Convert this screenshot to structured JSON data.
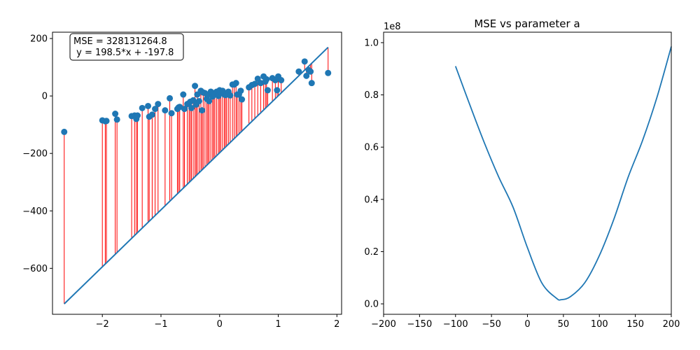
{
  "chart_data": [
    {
      "type": "scatter",
      "title": "",
      "xlabel": "",
      "ylabel": "",
      "xlim": [
        -2.85,
        2.08
      ],
      "ylim": [
        -760,
        222
      ],
      "xticks": [
        -2,
        -1,
        0,
        1,
        2
      ],
      "yticks": [
        200,
        0,
        -200,
        -400,
        -600
      ],
      "annotation_lines": [
        "MSE = 328131264.8",
        " y = 198.5*x + -197.8"
      ],
      "fit_line": {
        "slope": 198.5,
        "intercept": -197.8,
        "x_range": [
          -2.65,
          1.85
        ]
      },
      "colors": {
        "points": "#1f77b4",
        "line": "#1f77b4",
        "residuals": "#ff0000"
      },
      "points": {
        "x": [
          -2.65,
          -2.0,
          -1.95,
          -1.93,
          -1.78,
          -1.75,
          -1.5,
          -1.45,
          -1.42,
          -1.4,
          -1.32,
          -1.22,
          -1.2,
          -1.15,
          -1.1,
          -1.05,
          -0.93,
          -0.85,
          -0.82,
          -0.72,
          -0.7,
          -0.68,
          -0.62,
          -0.6,
          -0.55,
          -0.52,
          -0.5,
          -0.48,
          -0.45,
          -0.42,
          -0.4,
          -0.38,
          -0.35,
          -0.32,
          -0.3,
          -0.28,
          -0.25,
          -0.22,
          -0.2,
          -0.18,
          -0.15,
          -0.12,
          -0.1,
          -0.08,
          -0.05,
          -0.02,
          0.0,
          0.02,
          0.05,
          0.08,
          0.1,
          0.12,
          0.15,
          0.18,
          0.22,
          0.25,
          0.28,
          0.3,
          0.33,
          0.36,
          0.38,
          0.5,
          0.55,
          0.6,
          0.65,
          0.7,
          0.75,
          0.78,
          0.8,
          0.82,
          0.9,
          0.95,
          0.98,
          1.0,
          1.05,
          1.35,
          1.45,
          1.48,
          1.52,
          1.55,
          1.57,
          1.85
        ],
        "y": [
          -125,
          -85,
          -88,
          -87,
          -62,
          -82,
          -70,
          -68,
          -80,
          -68,
          -42,
          -35,
          -72,
          -65,
          -45,
          -28,
          -50,
          -8,
          -60,
          -45,
          -40,
          -38,
          5,
          -45,
          -28,
          -25,
          -20,
          -42,
          -15,
          35,
          -30,
          5,
          -18,
          18,
          -50,
          12,
          10,
          -10,
          5,
          -18,
          15,
          -2,
          10,
          5,
          15,
          0,
          20,
          12,
          18,
          5,
          3,
          5,
          15,
          2,
          40,
          40,
          45,
          5,
          5,
          18,
          -12,
          30,
          38,
          42,
          60,
          45,
          68,
          50,
          58,
          20,
          62,
          55,
          20,
          68,
          55,
          85,
          120,
          70,
          90,
          85,
          45,
          80
        ]
      }
    },
    {
      "type": "line",
      "title": "MSE vs parameter a",
      "xlabel": "",
      "ylabel": "",
      "y_offset_label": "1e8",
      "xlim": [
        -200,
        200
      ],
      "ylim": [
        -0.04,
        1.04
      ],
      "xticks": [
        -200,
        -150,
        -100,
        -50,
        0,
        50,
        100,
        150,
        200
      ],
      "yticks": [
        0.0,
        0.2,
        0.4,
        0.6,
        0.8,
        1.0
      ],
      "yticklabels": [
        "0.0",
        "0.2",
        "0.4",
        "0.6",
        "0.8",
        "1.0"
      ],
      "colors": {
        "line": "#1f77b4"
      },
      "series": [
        {
          "x": [
            -100,
            -80,
            -60,
            -40,
            -20,
            0,
            20,
            40,
            47,
            60,
            80,
            100,
            120,
            140,
            160,
            180,
            200
          ],
          "y": [
            0.91,
            0.761,
            0.617,
            0.486,
            0.37,
            0.215,
            0.08,
            0.022,
            0.016,
            0.028,
            0.082,
            0.185,
            0.323,
            0.485,
            0.625,
            0.79,
            0.985
          ]
        }
      ]
    }
  ]
}
